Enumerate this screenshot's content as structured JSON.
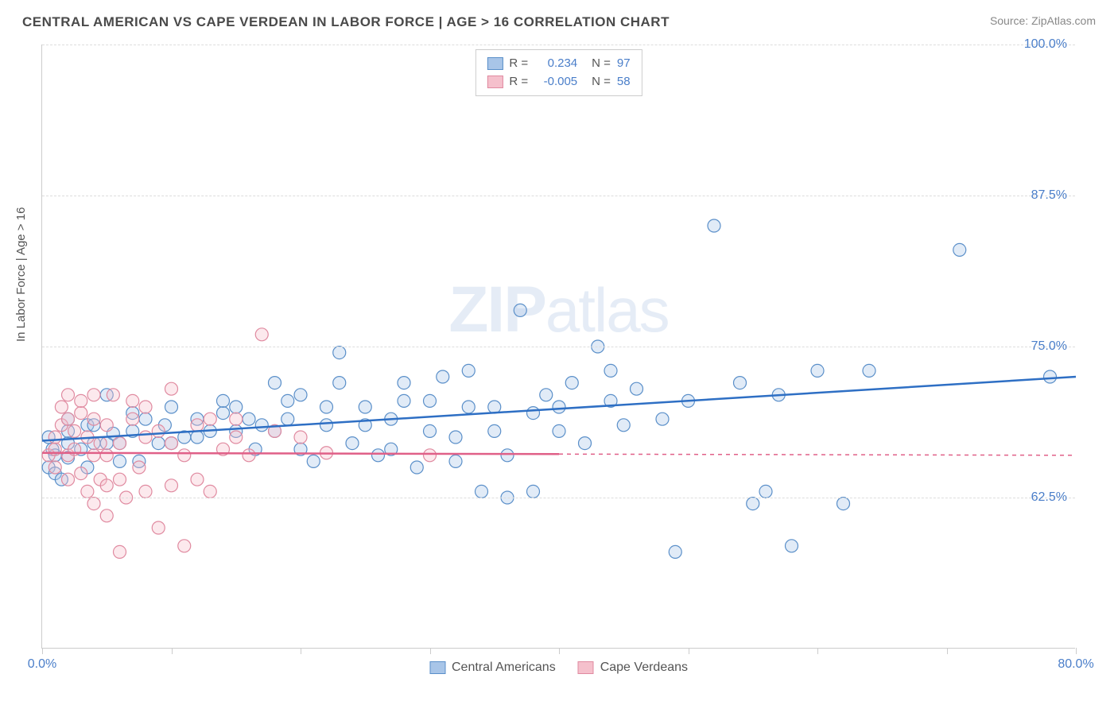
{
  "header": {
    "title": "CENTRAL AMERICAN VS CAPE VERDEAN IN LABOR FORCE | AGE > 16 CORRELATION CHART",
    "source_prefix": "Source: ",
    "source_name": "ZipAtlas.com"
  },
  "chart": {
    "type": "scatter",
    "ylabel": "In Labor Force | Age > 16",
    "xlim": [
      0,
      80
    ],
    "ylim": [
      50,
      100
    ],
    "xtick_positions": [
      0,
      10,
      20,
      30,
      40,
      50,
      60,
      70,
      80
    ],
    "xtick_labels": {
      "0": "0.0%",
      "80": "80.0%"
    },
    "ytick_positions": [
      62.5,
      75.0,
      87.5,
      100.0
    ],
    "ytick_labels": [
      "62.5%",
      "75.0%",
      "87.5%",
      "100.0%"
    ],
    "background_color": "#ffffff",
    "grid_color": "#dddddd",
    "axis_color": "#cccccc",
    "label_color": "#4a7ec9",
    "marker_radius": 8,
    "watermark": "ZIPatlas",
    "series": [
      {
        "name": "Central Americans",
        "fill": "#a8c5e8",
        "stroke": "#5a8fc9",
        "line_color": "#2e6fc4",
        "r_label": "R =",
        "r_value": "0.234",
        "n_label": "N =",
        "n_value": "97",
        "trendline": {
          "x1": 0,
          "y1": 67.2,
          "x2": 80,
          "y2": 72.5,
          "solid_until": 80
        },
        "points": [
          [
            0.5,
            65
          ],
          [
            0.8,
            66.5
          ],
          [
            0.5,
            67.5
          ],
          [
            1,
            66
          ],
          [
            1,
            64.5
          ],
          [
            1.5,
            64
          ],
          [
            2,
            67
          ],
          [
            2,
            68
          ],
          [
            2,
            69
          ],
          [
            2,
            65.8
          ],
          [
            3,
            66.5
          ],
          [
            3.5,
            68.5
          ],
          [
            3.5,
            65
          ],
          [
            4,
            67
          ],
          [
            4,
            68.5
          ],
          [
            5,
            67
          ],
          [
            5,
            71
          ],
          [
            5.5,
            67.8
          ],
          [
            6,
            67
          ],
          [
            6,
            65.5
          ],
          [
            7,
            68
          ],
          [
            7,
            69.5
          ],
          [
            7.5,
            65.5
          ],
          [
            8,
            69
          ],
          [
            9,
            67
          ],
          [
            9.5,
            68.5
          ],
          [
            10,
            67
          ],
          [
            10,
            70
          ],
          [
            11,
            67.5
          ],
          [
            12,
            67.5
          ],
          [
            12,
            69
          ],
          [
            13,
            68
          ],
          [
            14,
            69.5
          ],
          [
            14,
            70.5
          ],
          [
            15,
            68
          ],
          [
            15,
            70
          ],
          [
            16,
            69
          ],
          [
            16.5,
            66.5
          ],
          [
            17,
            68.5
          ],
          [
            18,
            68
          ],
          [
            18,
            72
          ],
          [
            19,
            69
          ],
          [
            19,
            70.5
          ],
          [
            20,
            66.5
          ],
          [
            20,
            71
          ],
          [
            21,
            65.5
          ],
          [
            22,
            68.5
          ],
          [
            22,
            70
          ],
          [
            23,
            74.5
          ],
          [
            23,
            72
          ],
          [
            24,
            67
          ],
          [
            25,
            68.5
          ],
          [
            25,
            70
          ],
          [
            26,
            66
          ],
          [
            27,
            66.5
          ],
          [
            27,
            69
          ],
          [
            28,
            72
          ],
          [
            28,
            70.5
          ],
          [
            29,
            65
          ],
          [
            30,
            68
          ],
          [
            30,
            70.5
          ],
          [
            31,
            72.5
          ],
          [
            32,
            65.5
          ],
          [
            32,
            67.5
          ],
          [
            33,
            70
          ],
          [
            33,
            73
          ],
          [
            34,
            63
          ],
          [
            35,
            68
          ],
          [
            35,
            70
          ],
          [
            36,
            62.5
          ],
          [
            36,
            66
          ],
          [
            37,
            78
          ],
          [
            38,
            63
          ],
          [
            38,
            69.5
          ],
          [
            39,
            71
          ],
          [
            40,
            68
          ],
          [
            40,
            70
          ],
          [
            41,
            72
          ],
          [
            42,
            67
          ],
          [
            43,
            75
          ],
          [
            44,
            70.5
          ],
          [
            44,
            73
          ],
          [
            45,
            68.5
          ],
          [
            46,
            71.5
          ],
          [
            48,
            69
          ],
          [
            49,
            58
          ],
          [
            50,
            70.5
          ],
          [
            52,
            85
          ],
          [
            54,
            72
          ],
          [
            55,
            62
          ],
          [
            56,
            63
          ],
          [
            57,
            71
          ],
          [
            58,
            58.5
          ],
          [
            60,
            73
          ],
          [
            62,
            62
          ],
          [
            64,
            73
          ],
          [
            71,
            83
          ],
          [
            78,
            72.5
          ]
        ]
      },
      {
        "name": "Cape Verdeans",
        "fill": "#f5c0cc",
        "stroke": "#e08aa0",
        "line_color": "#e06088",
        "r_label": "R =",
        "r_value": "-0.005",
        "n_label": "N =",
        "n_value": "58",
        "trendline": {
          "x1": 0,
          "y1": 66.2,
          "x2": 80,
          "y2": 66.0,
          "solid_until": 40
        },
        "points": [
          [
            0.5,
            66
          ],
          [
            1,
            66.5
          ],
          [
            1,
            67.5
          ],
          [
            1,
            65
          ],
          [
            1.5,
            68.5
          ],
          [
            1.5,
            70
          ],
          [
            2,
            66
          ],
          [
            2,
            69
          ],
          [
            2,
            71
          ],
          [
            2,
            64
          ],
          [
            2.5,
            66.5
          ],
          [
            2.5,
            68
          ],
          [
            3,
            64.5
          ],
          [
            3,
            69.5
          ],
          [
            3,
            70.5
          ],
          [
            3.5,
            63
          ],
          [
            3.5,
            67.5
          ],
          [
            4,
            62
          ],
          [
            4,
            66
          ],
          [
            4,
            69
          ],
          [
            4,
            71
          ],
          [
            4.5,
            64
          ],
          [
            4.5,
            67
          ],
          [
            5,
            61
          ],
          [
            5,
            63.5
          ],
          [
            5,
            66
          ],
          [
            5,
            68.5
          ],
          [
            5.5,
            71
          ],
          [
            6,
            58
          ],
          [
            6,
            64
          ],
          [
            6,
            67
          ],
          [
            6.5,
            62.5
          ],
          [
            7,
            69
          ],
          [
            7,
            70.5
          ],
          [
            7.5,
            65
          ],
          [
            8,
            63
          ],
          [
            8,
            67.5
          ],
          [
            8,
            70
          ],
          [
            9,
            60
          ],
          [
            9,
            68
          ],
          [
            10,
            63.5
          ],
          [
            10,
            67
          ],
          [
            10,
            71.5
          ],
          [
            11,
            58.5
          ],
          [
            11,
            66
          ],
          [
            12,
            64
          ],
          [
            12,
            68.5
          ],
          [
            13,
            63
          ],
          [
            13,
            69
          ],
          [
            14,
            66.5
          ],
          [
            15,
            67.5
          ],
          [
            15,
            69
          ],
          [
            16,
            66
          ],
          [
            17,
            76
          ],
          [
            18,
            68
          ],
          [
            20,
            67.5
          ],
          [
            22,
            66.2
          ],
          [
            30,
            66
          ]
        ]
      }
    ],
    "bottom_legend": [
      {
        "label": "Central Americans",
        "fill": "#a8c5e8",
        "stroke": "#5a8fc9"
      },
      {
        "label": "Cape Verdeans",
        "fill": "#f5c0cc",
        "stroke": "#e08aa0"
      }
    ]
  }
}
